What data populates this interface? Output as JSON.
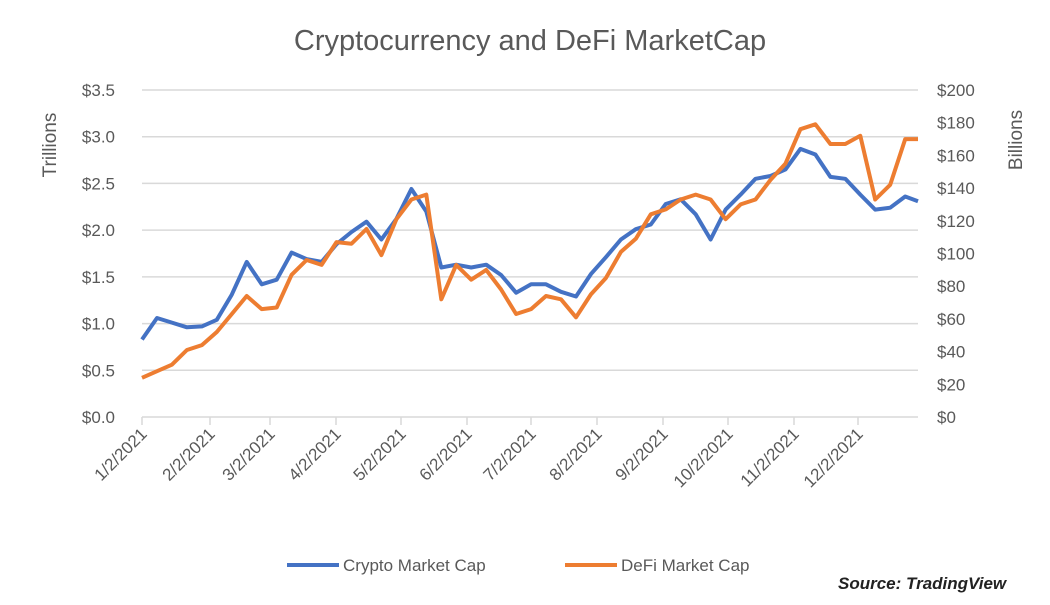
{
  "chart_data": {
    "type": "line",
    "title": "Cryptocurrency and DeFi MarketCap",
    "ylabel": "Trillions",
    "y2label": "Billions",
    "xlim": [
      "2021-01-02",
      "2021-12-31"
    ],
    "ylim": [
      0,
      3.5
    ],
    "y2lim": [
      0,
      200
    ],
    "grid": true,
    "legend": "bottom",
    "x_ticks": [
      "1/2/2021",
      "2/2/2021",
      "3/2/2021",
      "4/2/2021",
      "5/2/2021",
      "6/2/2021",
      "7/2/2021",
      "8/2/2021",
      "9/2/2021",
      "10/2/2021",
      "11/2/2021",
      "12/2/2021"
    ],
    "y_ticks": [
      "$0.0",
      "$0.5",
      "$1.0",
      "$1.5",
      "$2.0",
      "$2.5",
      "$3.0",
      "$3.5"
    ],
    "y2_ticks": [
      "$0",
      "$20",
      "$40",
      "$60",
      "$80",
      "$100",
      "$120",
      "$140",
      "$160",
      "$180",
      "$200"
    ],
    "x": [
      "2021-01-02",
      "2021-01-09",
      "2021-01-16",
      "2021-01-23",
      "2021-01-30",
      "2021-02-06",
      "2021-02-13",
      "2021-02-20",
      "2021-02-27",
      "2021-03-06",
      "2021-03-13",
      "2021-03-20",
      "2021-03-27",
      "2021-04-03",
      "2021-04-10",
      "2021-04-17",
      "2021-04-24",
      "2021-05-01",
      "2021-05-08",
      "2021-05-15",
      "2021-05-22",
      "2021-05-29",
      "2021-06-05",
      "2021-06-12",
      "2021-06-19",
      "2021-06-26",
      "2021-07-03",
      "2021-07-10",
      "2021-07-17",
      "2021-07-24",
      "2021-07-31",
      "2021-08-07",
      "2021-08-14",
      "2021-08-21",
      "2021-08-28",
      "2021-09-04",
      "2021-09-11",
      "2021-09-18",
      "2021-09-25",
      "2021-10-02",
      "2021-10-09",
      "2021-10-16",
      "2021-10-23",
      "2021-10-30",
      "2021-11-06",
      "2021-11-13",
      "2021-11-20",
      "2021-11-27",
      "2021-12-04",
      "2021-12-11",
      "2021-12-18",
      "2021-12-25",
      "2021-12-31"
    ],
    "series": [
      {
        "name": "Crypto Market Cap",
        "axis": "left",
        "color": "#4472C4",
        "values": [
          0.83,
          1.06,
          1.01,
          0.96,
          0.97,
          1.04,
          1.31,
          1.66,
          1.42,
          1.47,
          1.76,
          1.69,
          1.66,
          1.85,
          1.98,
          2.09,
          1.9,
          2.12,
          2.44,
          2.2,
          1.6,
          1.63,
          1.6,
          1.63,
          1.52,
          1.33,
          1.42,
          1.42,
          1.34,
          1.29,
          1.53,
          1.71,
          1.9,
          2.01,
          2.06,
          2.28,
          2.33,
          2.17,
          1.9,
          2.22,
          2.38,
          2.55,
          2.58,
          2.65,
          2.87,
          2.81,
          2.57,
          2.55,
          2.38,
          2.22,
          2.24,
          2.36,
          2.31
        ]
      },
      {
        "name": "DeFi Market Cap",
        "axis": "right",
        "color": "#ED7D31",
        "values": [
          24,
          28,
          32,
          41,
          44,
          52,
          63,
          74,
          66,
          67,
          87,
          96,
          93,
          107,
          106,
          115,
          99,
          121,
          133,
          136,
          72,
          93,
          84,
          90,
          78,
          63,
          66,
          74,
          72,
          61,
          75,
          85,
          101,
          109,
          124,
          127,
          133,
          136,
          133,
          121,
          130,
          133,
          145,
          155,
          176,
          179,
          167,
          167,
          172,
          133,
          142,
          170,
          170
        ]
      }
    ]
  },
  "source": "Source:  TradingView"
}
